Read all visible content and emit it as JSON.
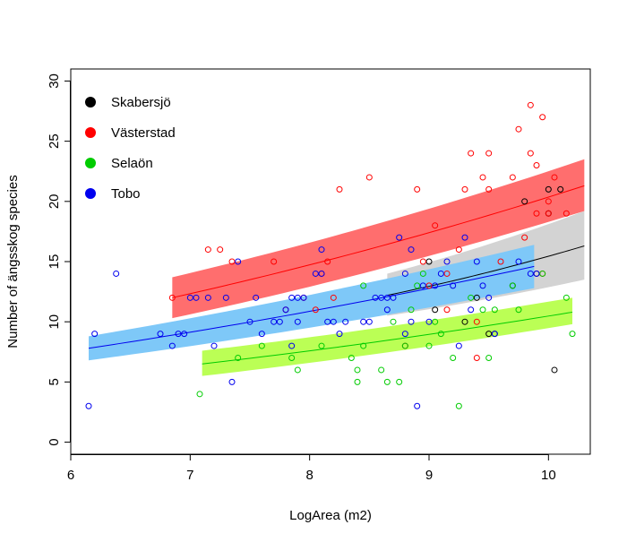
{
  "chart_data": {
    "type": "scatter",
    "title": "",
    "xlabel": "LogArea (m2)",
    "ylabel": "Number of ängsskog species",
    "xlim": [
      6.0,
      10.35
    ],
    "ylim": [
      -1.0,
      31.0
    ],
    "xticks": [
      "6",
      "7",
      "8",
      "9",
      "10"
    ],
    "yticks": [
      "0",
      "5",
      "10",
      "15",
      "20",
      "25",
      "30"
    ],
    "grid": false,
    "legend": "top-left",
    "series": [
      {
        "name": "Skabersjö",
        "color": "#000000",
        "band_color": "#d3d3d3",
        "fit_x": [
          8.65,
          10.3
        ],
        "fit_y": [
          12.2,
          16.3
        ],
        "fit_lower": [
          10.5,
          13.5
        ],
        "fit_upper": [
          14.0,
          19.2
        ],
        "points": [
          [
            9.0,
            15
          ],
          [
            9.3,
            10
          ],
          [
            9.5,
            9
          ],
          [
            9.55,
            9
          ],
          [
            9.7,
            13
          ],
          [
            9.8,
            20
          ],
          [
            9.9,
            14
          ],
          [
            10.0,
            21
          ],
          [
            10.05,
            6
          ],
          [
            10.1,
            21
          ],
          [
            9.05,
            11
          ],
          [
            9.4,
            12
          ],
          [
            10.0,
            19
          ]
        ]
      },
      {
        "name": "Västerstad",
        "color": "#ff0000",
        "band_color": "#ff6e6e",
        "fit_x": [
          6.85,
          10.3
        ],
        "fit_y": [
          12.0,
          21.3
        ],
        "fit_lower": [
          10.3,
          19.2
        ],
        "fit_upper": [
          13.7,
          23.5
        ],
        "points": [
          [
            6.85,
            12
          ],
          [
            7.15,
            16
          ],
          [
            7.25,
            16
          ],
          [
            7.35,
            15
          ],
          [
            7.7,
            15
          ],
          [
            7.8,
            11
          ],
          [
            7.95,
            12
          ],
          [
            8.05,
            11
          ],
          [
            8.1,
            14
          ],
          [
            8.15,
            15
          ],
          [
            8.2,
            12
          ],
          [
            8.25,
            21
          ],
          [
            8.5,
            22
          ],
          [
            8.9,
            21
          ],
          [
            8.95,
            15
          ],
          [
            9.0,
            13
          ],
          [
            9.05,
            18
          ],
          [
            9.15,
            14
          ],
          [
            9.25,
            16
          ],
          [
            9.3,
            21
          ],
          [
            9.35,
            24
          ],
          [
            9.4,
            10
          ],
          [
            9.45,
            22
          ],
          [
            9.5,
            21
          ],
          [
            9.5,
            24
          ],
          [
            9.6,
            15
          ],
          [
            9.7,
            22
          ],
          [
            9.75,
            26
          ],
          [
            9.8,
            17
          ],
          [
            9.85,
            28
          ],
          [
            9.85,
            24
          ],
          [
            9.9,
            19
          ],
          [
            9.9,
            23
          ],
          [
            9.95,
            14
          ],
          [
            9.95,
            27
          ],
          [
            10.0,
            19
          ],
          [
            10.0,
            20
          ],
          [
            10.05,
            22
          ],
          [
            10.15,
            19
          ],
          [
            9.4,
            7
          ],
          [
            9.15,
            11
          ],
          [
            8.8,
            8
          ]
        ]
      },
      {
        "name": "Selaön",
        "color": "#00cc00",
        "band_color": "#bbff55",
        "fit_x": [
          7.1,
          10.2
        ],
        "fit_y": [
          6.5,
          10.8
        ],
        "fit_lower": [
          5.5,
          9.8
        ],
        "fit_upper": [
          7.6,
          12.0
        ],
        "points": [
          [
            7.08,
            4
          ],
          [
            7.4,
            7
          ],
          [
            7.6,
            8
          ],
          [
            7.85,
            7
          ],
          [
            7.9,
            6
          ],
          [
            8.1,
            8
          ],
          [
            8.35,
            7
          ],
          [
            8.4,
            6
          ],
          [
            8.45,
            8
          ],
          [
            8.4,
            5
          ],
          [
            8.45,
            13
          ],
          [
            8.6,
            6
          ],
          [
            8.65,
            5
          ],
          [
            8.7,
            10
          ],
          [
            8.75,
            5
          ],
          [
            8.8,
            8
          ],
          [
            8.85,
            11
          ],
          [
            8.9,
            13
          ],
          [
            8.95,
            14
          ],
          [
            9.0,
            8
          ],
          [
            9.05,
            10
          ],
          [
            9.1,
            9
          ],
          [
            9.2,
            7
          ],
          [
            9.25,
            3
          ],
          [
            9.35,
            12
          ],
          [
            9.45,
            11
          ],
          [
            9.5,
            7
          ],
          [
            9.55,
            11
          ],
          [
            9.7,
            13
          ],
          [
            9.75,
            11
          ],
          [
            9.95,
            14
          ],
          [
            10.15,
            12
          ],
          [
            10.2,
            9
          ]
        ]
      },
      {
        "name": "Tobo",
        "color": "#0000ee",
        "band_color": "#7ec8f8",
        "fit_x": [
          6.15,
          9.88
        ],
        "fit_y": [
          7.8,
          14.6
        ],
        "fit_lower": [
          6.8,
          12.8
        ],
        "fit_upper": [
          8.8,
          16.4
        ],
        "points": [
          [
            6.15,
            3
          ],
          [
            6.2,
            9
          ],
          [
            6.38,
            14
          ],
          [
            6.75,
            9
          ],
          [
            6.85,
            8
          ],
          [
            6.9,
            9
          ],
          [
            6.95,
            9
          ],
          [
            7.0,
            12
          ],
          [
            7.05,
            12
          ],
          [
            7.15,
            12
          ],
          [
            7.2,
            8
          ],
          [
            7.3,
            12
          ],
          [
            7.35,
            5
          ],
          [
            7.4,
            15
          ],
          [
            7.5,
            10
          ],
          [
            7.55,
            12
          ],
          [
            7.6,
            9
          ],
          [
            7.7,
            10
          ],
          [
            7.75,
            10
          ],
          [
            7.8,
            11
          ],
          [
            7.85,
            12
          ],
          [
            7.85,
            8
          ],
          [
            7.9,
            12
          ],
          [
            7.9,
            10
          ],
          [
            7.95,
            12
          ],
          [
            8.05,
            14
          ],
          [
            8.1,
            14
          ],
          [
            8.1,
            16
          ],
          [
            8.15,
            10
          ],
          [
            8.2,
            10
          ],
          [
            8.25,
            9
          ],
          [
            8.3,
            10
          ],
          [
            8.45,
            10
          ],
          [
            8.5,
            10
          ],
          [
            8.55,
            12
          ],
          [
            8.6,
            12
          ],
          [
            8.65,
            11
          ],
          [
            8.65,
            12
          ],
          [
            8.7,
            12
          ],
          [
            8.75,
            17
          ],
          [
            8.8,
            9
          ],
          [
            8.8,
            14
          ],
          [
            8.85,
            10
          ],
          [
            8.85,
            16
          ],
          [
            8.9,
            3
          ],
          [
            8.95,
            13
          ],
          [
            9.0,
            10
          ],
          [
            9.05,
            13
          ],
          [
            9.1,
            14
          ],
          [
            9.15,
            15
          ],
          [
            9.2,
            13
          ],
          [
            9.25,
            8
          ],
          [
            9.3,
            17
          ],
          [
            9.35,
            11
          ],
          [
            9.4,
            15
          ],
          [
            9.45,
            13
          ],
          [
            9.5,
            12
          ],
          [
            9.55,
            9
          ],
          [
            9.75,
            15
          ],
          [
            9.85,
            14
          ],
          [
            9.9,
            14
          ]
        ]
      }
    ]
  }
}
